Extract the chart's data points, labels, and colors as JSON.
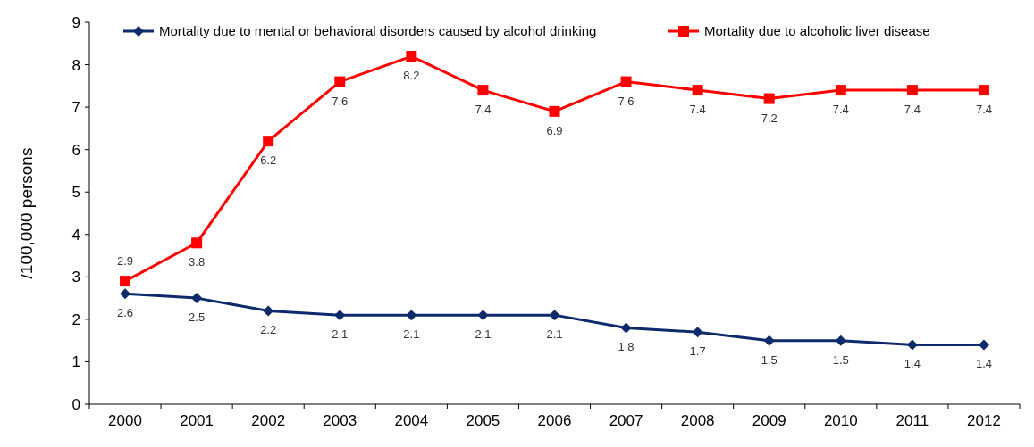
{
  "chart_data": {
    "type": "line",
    "ylabel": "/100,000 persons",
    "categories": [
      "2000",
      "2001",
      "2002",
      "2003",
      "2004",
      "2005",
      "2006",
      "2007",
      "2008",
      "2009",
      "2010",
      "2011",
      "2012"
    ],
    "series": [
      {
        "name": "Mortality due to mental or behavioral disorders caused by alcohol drinking",
        "color": "#0d2a6b",
        "marker": "diamond",
        "values": [
          2.6,
          2.5,
          2.2,
          2.1,
          2.1,
          2.1,
          2.1,
          1.8,
          1.7,
          1.5,
          1.5,
          1.4,
          1.4
        ]
      },
      {
        "name": "Mortality due to alcoholic liver disease",
        "color": "#ff0000",
        "marker": "square",
        "values": [
          2.9,
          3.8,
          6.2,
          7.6,
          8.2,
          7.4,
          6.9,
          7.6,
          7.4,
          7.2,
          7.4,
          7.4,
          7.4
        ]
      }
    ],
    "ylim": [
      0,
      9
    ],
    "yticks": [
      0,
      1,
      2,
      3,
      4,
      5,
      6,
      7,
      8,
      9
    ],
    "grid": false,
    "legend": "top",
    "data_labels": true,
    "line_style": "solid"
  }
}
